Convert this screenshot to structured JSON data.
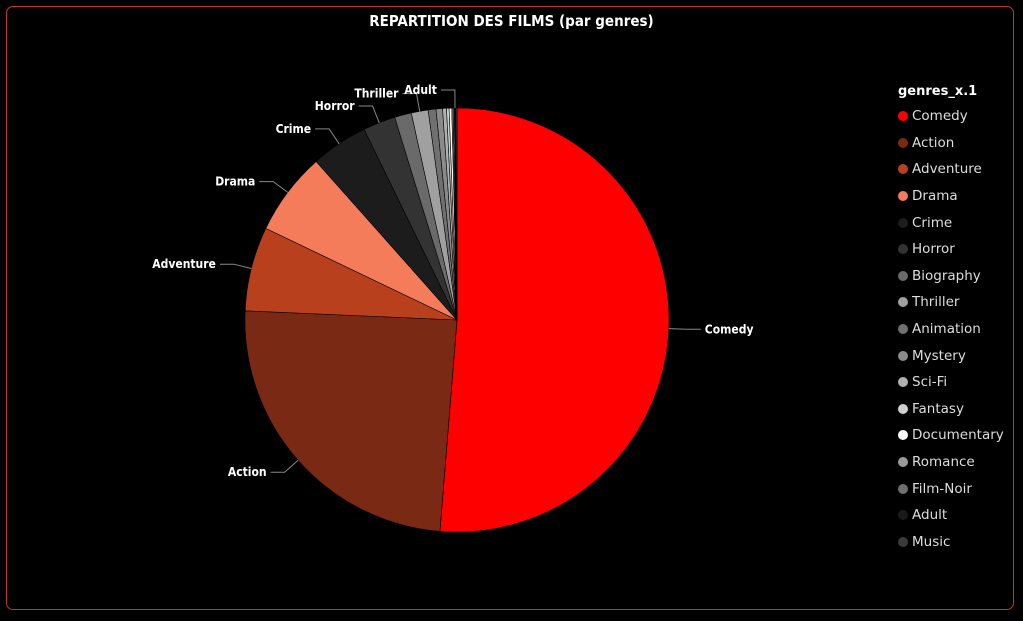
{
  "chart_data": {
    "type": "pie",
    "title": "REPARTITION DES FILMS (par genres)",
    "legend_title": "genres_x.1",
    "legend_position": "right",
    "slices": [
      {
        "label": "Comedy",
        "value": 51.9,
        "color": "#ff0000",
        "show_label": true
      },
      {
        "label": "Action",
        "value": 24.7,
        "color": "#7a2a14",
        "show_label": true
      },
      {
        "label": "Adventure",
        "value": 6.5,
        "color": "#b8401c",
        "show_label": true
      },
      {
        "label": "Drama",
        "value": 6.4,
        "color": "#f47c5a",
        "show_label": true
      },
      {
        "label": "Crime",
        "value": 4.4,
        "color": "#1c1c1c",
        "show_label": true
      },
      {
        "label": "Horror",
        "value": 2.5,
        "color": "#333333",
        "show_label": true
      },
      {
        "label": "Biography",
        "value": 1.3,
        "color": "#6a6a6a",
        "show_label": false
      },
      {
        "label": "Thriller",
        "value": 1.3,
        "color": "#a0a0a0",
        "show_label": true
      },
      {
        "label": "Animation",
        "value": 0.6,
        "color": "#707070",
        "show_label": false
      },
      {
        "label": "Mystery",
        "value": 0.5,
        "color": "#8a8a8a",
        "show_label": false
      },
      {
        "label": "Sci-Fi",
        "value": 0.3,
        "color": "#b0b0b0",
        "show_label": false
      },
      {
        "label": "Fantasy",
        "value": 0.2,
        "color": "#cfcfcf",
        "show_label": false
      },
      {
        "label": "Documentary",
        "value": 0.2,
        "color": "#ffffff",
        "show_label": false
      },
      {
        "label": "Romance",
        "value": 0.1,
        "color": "#9a9a9a",
        "show_label": false
      },
      {
        "label": "Film-Noir",
        "value": 0.1,
        "color": "#6f6f6f",
        "show_label": false
      },
      {
        "label": "Adult",
        "value": 0.1,
        "color": "#1a1a1a",
        "show_label": true
      },
      {
        "label": "Music",
        "value": 0.1,
        "color": "#3a3a3a",
        "show_label": false
      }
    ]
  }
}
